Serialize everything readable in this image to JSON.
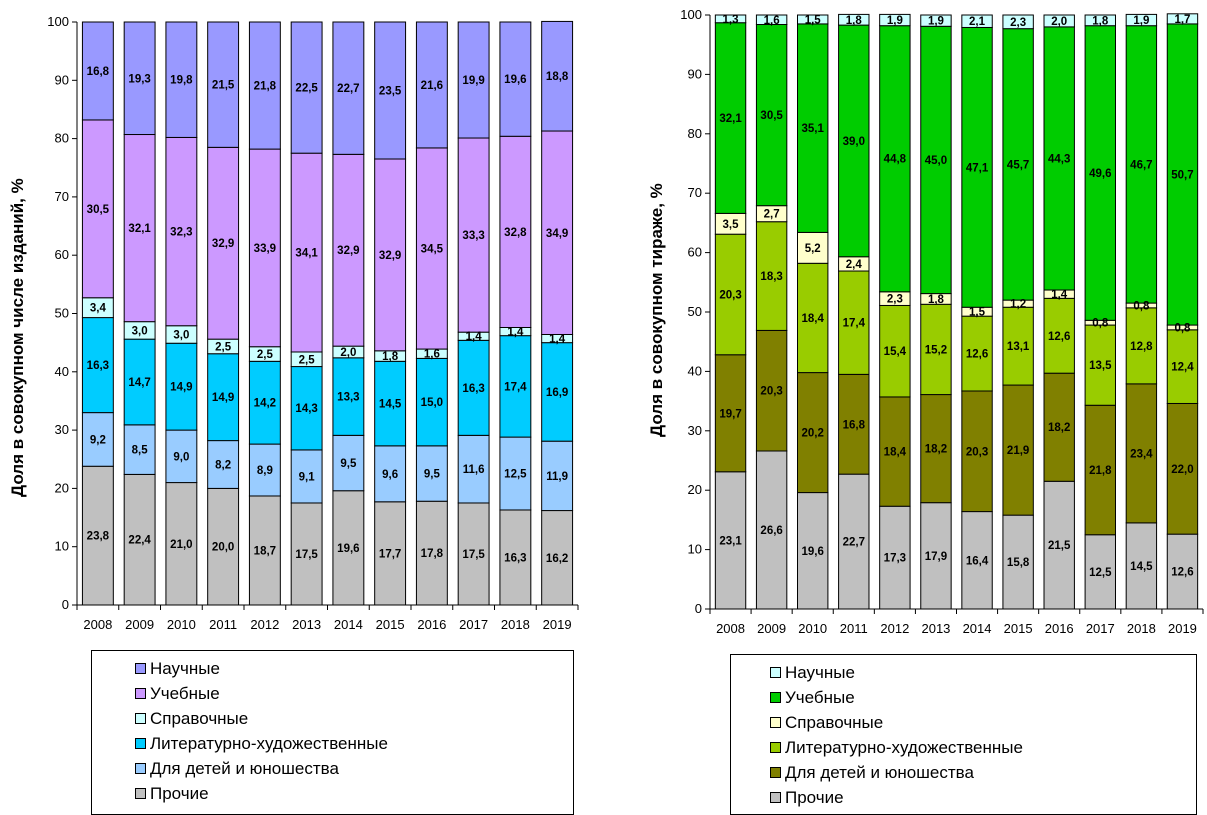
{
  "chart_data": [
    {
      "type": "bar",
      "stacked": true,
      "title": "",
      "xlabel": "",
      "ylabel": "Доля в совокупном числе изданий, %",
      "ylim": [
        0,
        100
      ],
      "yticks": [
        "0",
        "10",
        "20",
        "30",
        "40",
        "50",
        "60",
        "70",
        "80",
        "90",
        "100"
      ],
      "grid": false,
      "legend_position": "bottom",
      "categories": [
        "2008",
        "2009",
        "2010",
        "2011",
        "2012",
        "2013",
        "2014",
        "2015",
        "2016",
        "2017",
        "2018",
        "2019"
      ],
      "series": [
        {
          "name": "Прочие",
          "color": "#C0C0C0",
          "values": [
            23.8,
            22.4,
            21.0,
            20.0,
            18.7,
            17.5,
            19.6,
            17.7,
            17.8,
            17.5,
            16.3,
            16.2
          ],
          "labels": [
            "23,8",
            "22,4",
            "21,0",
            "20,0",
            "18,7",
            "17,5",
            "19,6",
            "17,7",
            "17,8",
            "17,5",
            "16,3",
            "16,2"
          ]
        },
        {
          "name": "Для детей и юношества",
          "color": "#99CCFF",
          "values": [
            9.2,
            8.5,
            9.0,
            8.2,
            8.9,
            9.1,
            9.5,
            9.6,
            9.5,
            11.6,
            12.5,
            11.9
          ],
          "labels": [
            "9,2",
            "8,5",
            "9,0",
            "8,2",
            "8,9",
            "9,1",
            "9,5",
            "9,6",
            "9,5",
            "11,6",
            "12,5",
            "11,9"
          ]
        },
        {
          "name": "Литературно-художественные",
          "color": "#00CCFF",
          "values": [
            16.3,
            14.7,
            14.9,
            14.9,
            14.2,
            14.3,
            13.3,
            14.5,
            15.0,
            16.3,
            17.4,
            16.9
          ],
          "labels": [
            "16,3",
            "14,7",
            "14,9",
            "14,9",
            "14,2",
            "14,3",
            "13,3",
            "14,5",
            "15,0",
            "16,3",
            "17,4",
            "16,9"
          ]
        },
        {
          "name": "Справочные",
          "color": "#CCFFFF",
          "values": [
            3.4,
            3.0,
            3.0,
            2.5,
            2.5,
            2.5,
            2.0,
            1.8,
            1.6,
            1.4,
            1.4,
            1.4
          ],
          "labels": [
            "3,4",
            "3,0",
            "3,0",
            "2,5",
            "2,5",
            "2,5",
            "2,0",
            "1,8",
            "1,6",
            "1,4",
            "1,4",
            "1,4"
          ]
        },
        {
          "name": "Учебные",
          "color": "#CC99FF",
          "values": [
            30.5,
            32.1,
            32.3,
            32.9,
            33.9,
            34.1,
            32.9,
            32.9,
            34.5,
            33.3,
            32.8,
            34.9
          ],
          "labels": [
            "30,5",
            "32,1",
            "32,3",
            "32,9",
            "33,9",
            "34,1",
            "32,9",
            "32,9",
            "34,5",
            "33,3",
            "32,8",
            "34,9"
          ]
        },
        {
          "name": "Научные",
          "color": "#9999FF",
          "values": [
            16.8,
            19.3,
            19.8,
            21.5,
            21.8,
            22.5,
            22.7,
            23.5,
            21.6,
            19.9,
            19.6,
            18.8
          ],
          "labels": [
            "16,8",
            "19,3",
            "19,8",
            "21,5",
            "21,8",
            "22,5",
            "22,7",
            "23,5",
            "21,6",
            "19,9",
            "19,6",
            "18,8"
          ]
        }
      ]
    },
    {
      "type": "bar",
      "stacked": true,
      "title": "",
      "xlabel": "",
      "ylabel": "Доля в совокупном тираже, %",
      "ylim": [
        0,
        100
      ],
      "yticks": [
        "0",
        "10",
        "20",
        "30",
        "40",
        "50",
        "60",
        "70",
        "80",
        "90",
        "100"
      ],
      "grid": false,
      "legend_position": "bottom",
      "categories": [
        "2008",
        "2009",
        "2010",
        "2011",
        "2012",
        "2013",
        "2014",
        "2015",
        "2016",
        "2017",
        "2018",
        "2019"
      ],
      "series": [
        {
          "name": "Прочие",
          "color": "#C0C0C0",
          "values": [
            23.1,
            26.6,
            19.6,
            22.7,
            17.3,
            17.9,
            16.4,
            15.8,
            21.5,
            12.5,
            14.5,
            12.6
          ],
          "labels": [
            "23,1",
            "26,6",
            "19,6",
            "22,7",
            "17,3",
            "17,9",
            "16,4",
            "15,8",
            "21,5",
            "12,5",
            "14,5",
            "12,6"
          ]
        },
        {
          "name": "Для детей и юношества",
          "color": "#808000",
          "values": [
            19.7,
            20.3,
            20.2,
            16.8,
            18.4,
            18.2,
            20.3,
            21.9,
            18.2,
            21.8,
            23.4,
            22.0
          ],
          "labels": [
            "19,7",
            "20,3",
            "20,2",
            "16,8",
            "18,4",
            "18,2",
            "20,3",
            "21,9",
            "18,2",
            "21,8",
            "23,4",
            "22,0"
          ]
        },
        {
          "name": "Литературно-художественные",
          "color": "#99CC00",
          "values": [
            20.3,
            18.3,
            18.4,
            17.4,
            15.4,
            15.2,
            12.6,
            13.1,
            12.6,
            13.5,
            12.8,
            12.4
          ],
          "labels": [
            "20,3",
            "18,3",
            "18,4",
            "17,4",
            "15,4",
            "15,2",
            "12,6",
            "13,1",
            "12,6",
            "13,5",
            "12,8",
            "12,4"
          ]
        },
        {
          "name": "Справочные",
          "color": "#FFFFCC",
          "values": [
            3.5,
            2.7,
            5.2,
            2.4,
            2.3,
            1.8,
            1.5,
            1.2,
            1.4,
            0.8,
            0.8,
            0.8
          ],
          "labels": [
            "3,5",
            "2,7",
            "5,2",
            "2,4",
            "2,3",
            "1,8",
            "1,5",
            "1,2",
            "1,4",
            "0,8",
            "0,8",
            "0,8"
          ]
        },
        {
          "name": "Учебные",
          "color": "#00CC00",
          "values": [
            32.1,
            30.5,
            35.1,
            39.0,
            44.8,
            45.0,
            47.1,
            45.7,
            44.3,
            49.6,
            46.7,
            50.7
          ],
          "labels": [
            "32,1",
            "30,5",
            "35,1",
            "39,0",
            "44,8",
            "45,0",
            "47,1",
            "45,7",
            "44,3",
            "49,6",
            "46,7",
            "50,7"
          ]
        },
        {
          "name": "Научные",
          "color": "#CCFFFF",
          "values": [
            1.3,
            1.6,
            1.5,
            1.8,
            1.9,
            1.9,
            2.1,
            2.3,
            2.0,
            1.8,
            1.9,
            1.7
          ],
          "labels": [
            "1,3",
            "1,6",
            "1,5",
            "1,8",
            "1,9",
            "1,9",
            "2,1",
            "2,3",
            "2,0",
            "1,8",
            "1,9",
            "1,7"
          ]
        }
      ]
    }
  ]
}
